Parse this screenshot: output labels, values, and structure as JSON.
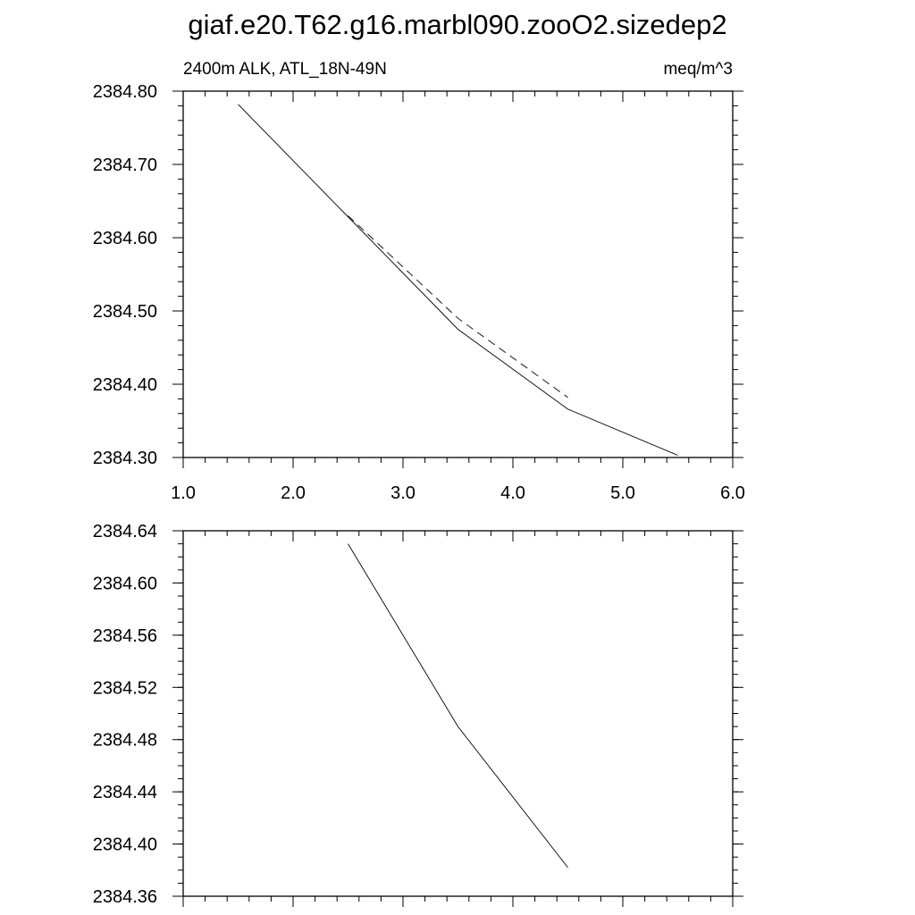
{
  "figure": {
    "title": "giaf.e20.T62.g16.marbl090.zooO2.sizedep2"
  },
  "chart_data": [
    {
      "type": "line",
      "title_left": "2400m ALK, ATL_18N-49N",
      "title_right": "meq/m^3",
      "xlim": [
        1.0,
        6.0
      ],
      "ylim": [
        2384.3,
        2384.8
      ],
      "x_ticks": [
        1.0,
        2.0,
        3.0,
        4.0,
        5.0,
        6.0
      ],
      "x_tick_labels": [
        "1.0",
        "2.0",
        "3.0",
        "4.0",
        "5.0",
        "6.0"
      ],
      "x_minor_step": 0.2,
      "y_ticks": [
        2384.3,
        2384.4,
        2384.5,
        2384.6,
        2384.7,
        2384.8
      ],
      "y_tick_labels": [
        "2384.30",
        "2384.40",
        "2384.50",
        "2384.60",
        "2384.70",
        "2384.80"
      ],
      "y_minor_step": 0.02,
      "grid": false,
      "series": [
        {
          "style": "solid",
          "color": "#000000",
          "x": [
            1.5,
            3.5,
            4.5,
            5.5
          ],
          "y": [
            2384.782,
            2384.475,
            2384.366,
            2384.303
          ]
        },
        {
          "style": "dashed",
          "color": "#000000",
          "x": [
            2.5,
            3.5,
            4.5
          ],
          "y": [
            2384.63,
            2384.49,
            2384.382
          ]
        }
      ]
    },
    {
      "type": "line",
      "xlim": [
        1.0,
        6.0
      ],
      "ylim": [
        2384.36,
        2384.64
      ],
      "x_ticks": [
        1.0,
        2.0,
        3.0,
        4.0,
        5.0,
        6.0
      ],
      "x_tick_labels": [],
      "x_minor_step": 0.2,
      "y_ticks": [
        2384.36,
        2384.4,
        2384.44,
        2384.48,
        2384.52,
        2384.56,
        2384.6,
        2384.64
      ],
      "y_tick_labels": [
        "2384.36",
        "2384.40",
        "2384.44",
        "2384.48",
        "2384.52",
        "2384.56",
        "2384.60",
        "2384.64"
      ],
      "y_minor_step": 0.01,
      "grid": false,
      "series": [
        {
          "style": "solid",
          "color": "#000000",
          "x": [
            2.5,
            3.5,
            4.5
          ],
          "y": [
            2384.63,
            2384.49,
            2384.382
          ]
        }
      ]
    }
  ]
}
